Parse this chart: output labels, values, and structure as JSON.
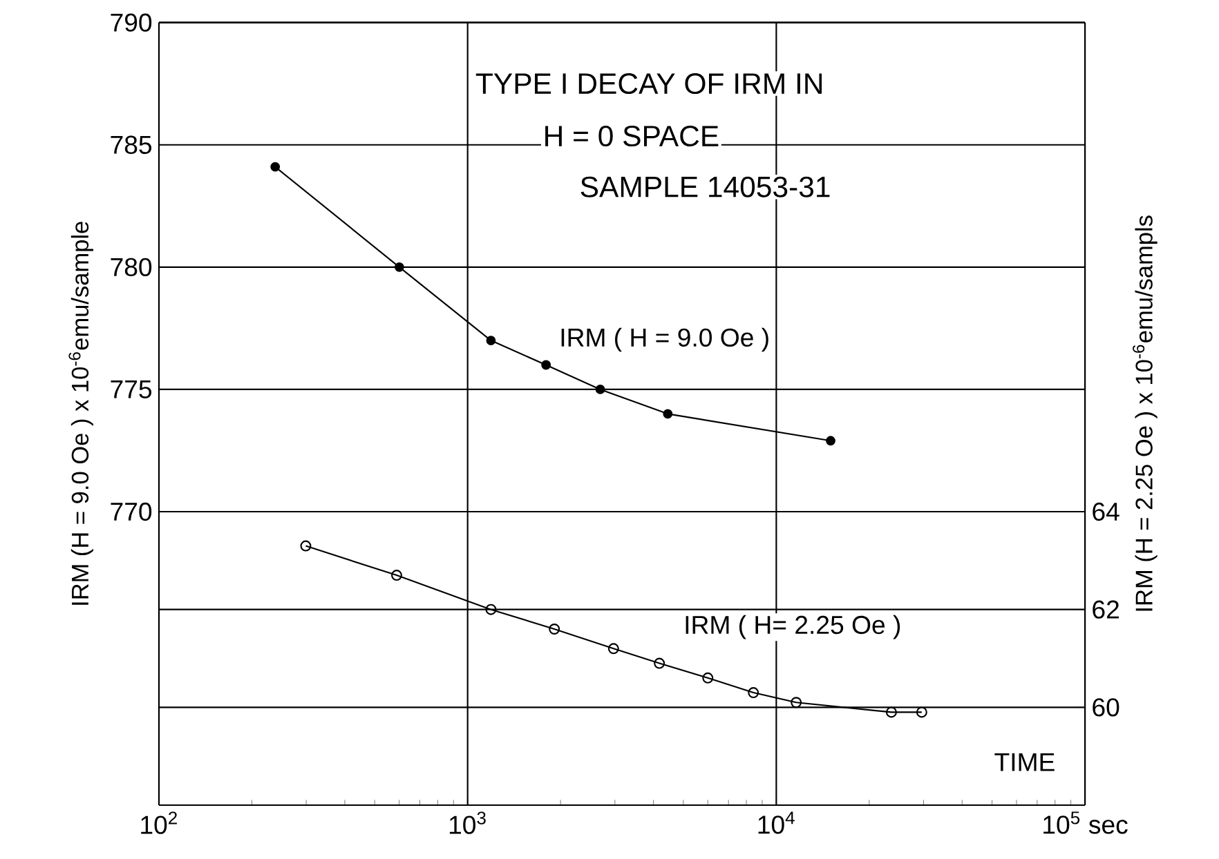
{
  "chart_data": {
    "type": "line",
    "title": "TYPE I DECAY OF IRM IN",
    "subtitle": "H = 0    SPACE",
    "annotations": [
      "SAMPLE 14053-31"
    ],
    "xlabel": "TIME",
    "ylabel": "IRM (H = 9.0 Oe ) x 10$^{-6}$emu/sample",
    "y2label": "IRM (H = 2.25 Oe ) x 10$^{-6}$emu/sampls",
    "log": "x",
    "grid": true,
    "marker": "circle",
    "line_style": "solid",
    "xlim": [
      100,
      100000
    ],
    "xticks": [
      {
        "value": 100,
        "label": "10$^{2}$"
      },
      {
        "value": 1000,
        "label": "10$^{3}$"
      },
      {
        "value": 10000,
        "label": "10$^{4}$"
      },
      {
        "value": 100000,
        "label": "10$^{5}$ sec"
      }
    ],
    "ylim": [
      758,
      790
    ],
    "yticks": [
      770,
      775,
      780,
      785,
      790
    ],
    "y2lim": [
      58,
      74
    ],
    "y2ticks": [
      60,
      62,
      64
    ],
    "series": [
      {
        "name": "IRM ( H = 9.0 Oe )",
        "color": "#000000",
        "x": [
          238,
          601,
          1190,
          1795,
          2690,
          4450,
          15000
        ],
        "values": [
          784.1,
          780,
          777,
          776,
          775,
          774,
          772.9
        ]
      },
      {
        "name": "IRM ( H= 2.25 Oe )",
        "color": "#000000",
        "axis": "y2",
        "x": [
          299,
          589,
          1190,
          1910,
          2970,
          4180,
          6000,
          8430,
          11600,
          23600,
          29600
        ],
        "values": [
          63.3,
          62.7,
          62.0,
          61.6,
          61.2,
          60.9,
          60.6,
          60.3,
          60.1,
          59.9,
          59.9
        ]
      }
    ]
  }
}
